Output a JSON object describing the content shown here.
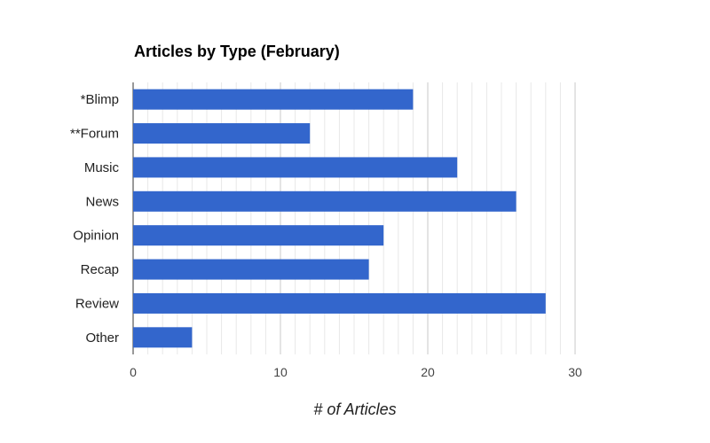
{
  "chart_data": {
    "type": "bar",
    "orientation": "horizontal",
    "title": "Articles by Type (February)",
    "xlabel": "# of Articles",
    "ylabel": "",
    "categories": [
      "*Blimp",
      "**Forum",
      "Music",
      "News",
      "Opinion",
      "Recap",
      "Review",
      "Other"
    ],
    "values": [
      19,
      12,
      22,
      26,
      17,
      16,
      28,
      4
    ],
    "xlim": [
      0,
      30
    ],
    "major_ticks": [
      0,
      10,
      20,
      30
    ],
    "minor_tick_step": 1,
    "grid": true,
    "legend": "none",
    "bar_color": "#3366cc",
    "major_grid_color": "#c8c8c8",
    "minor_grid_color": "#e8e8e8"
  }
}
